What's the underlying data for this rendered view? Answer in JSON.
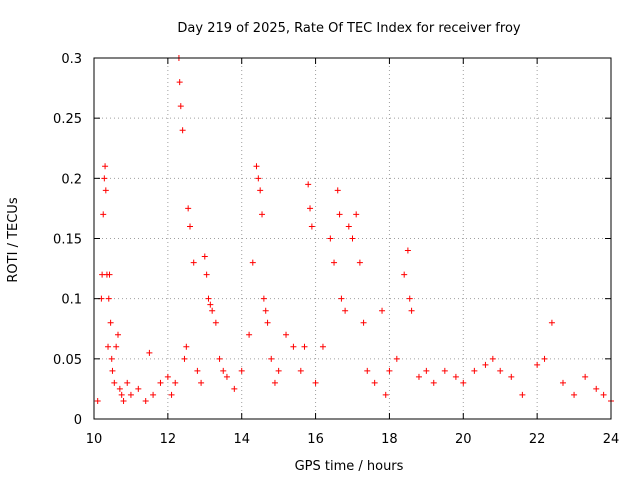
{
  "chart_data": {
    "type": "scatter",
    "title": "Day 219 of 2025, Rate Of TEC Index for receiver froy",
    "xlabel": "GPS time / hours",
    "ylabel": "ROTI / TECUs",
    "xlim": [
      10,
      24
    ],
    "ylim": [
      0,
      0.3
    ],
    "x_ticks": [
      10,
      12,
      14,
      16,
      18,
      20,
      22,
      24
    ],
    "x_tick_labels": [
      "10",
      "12",
      "14",
      "16",
      "18",
      "20",
      "22",
      "24"
    ],
    "y_ticks": [
      0,
      0.05,
      0.1,
      0.15,
      0.2,
      0.25,
      0.3
    ],
    "y_tick_labels": [
      "0",
      "0.05",
      "0.1",
      "0.15",
      "0.2",
      "0.25",
      "0.3"
    ],
    "grid": true,
    "marker": "+",
    "color": "#ff0000",
    "series": [
      {
        "name": "ROTI",
        "x": [
          10.1,
          10.2,
          10.22,
          10.25,
          10.28,
          10.3,
          10.32,
          10.35,
          10.38,
          10.4,
          10.42,
          10.45,
          10.48,
          10.5,
          10.55,
          10.6,
          10.65,
          10.7,
          10.75,
          10.8,
          10.9,
          11.0,
          11.2,
          11.4,
          11.5,
          11.6,
          11.8,
          12.0,
          12.1,
          12.2,
          12.3,
          12.32,
          12.35,
          12.4,
          12.45,
          12.5,
          12.55,
          12.6,
          12.7,
          12.8,
          12.9,
          13.0,
          13.05,
          13.1,
          13.15,
          13.2,
          13.3,
          13.4,
          13.5,
          13.6,
          13.8,
          14.0,
          14.2,
          14.3,
          14.4,
          14.45,
          14.5,
          14.55,
          14.6,
          14.65,
          14.7,
          14.8,
          14.9,
          15.0,
          15.2,
          15.4,
          15.6,
          15.7,
          15.8,
          15.85,
          15.9,
          16.0,
          16.2,
          16.4,
          16.5,
          16.6,
          16.65,
          16.7,
          16.8,
          16.9,
          17.0,
          17.1,
          17.2,
          17.3,
          17.4,
          17.6,
          17.8,
          17.9,
          18.0,
          18.2,
          18.4,
          18.5,
          18.55,
          18.6,
          18.8,
          19.0,
          19.2,
          19.5,
          19.8,
          20.0,
          20.3,
          20.6,
          20.8,
          21.0,
          21.3,
          21.6,
          22.0,
          22.2,
          22.4,
          22.7,
          23.0,
          23.3,
          23.6,
          23.8,
          24.0
        ],
        "y": [
          0.015,
          0.1,
          0.12,
          0.17,
          0.2,
          0.21,
          0.19,
          0.12,
          0.06,
          0.1,
          0.12,
          0.08,
          0.05,
          0.04,
          0.03,
          0.06,
          0.07,
          0.025,
          0.02,
          0.015,
          0.03,
          0.02,
          0.025,
          0.015,
          0.055,
          0.02,
          0.03,
          0.035,
          0.02,
          0.03,
          0.3,
          0.28,
          0.26,
          0.24,
          0.05,
          0.06,
          0.175,
          0.16,
          0.13,
          0.04,
          0.03,
          0.135,
          0.12,
          0.1,
          0.095,
          0.09,
          0.08,
          0.05,
          0.04,
          0.035,
          0.025,
          0.04,
          0.07,
          0.13,
          0.21,
          0.2,
          0.19,
          0.17,
          0.1,
          0.09,
          0.08,
          0.05,
          0.03,
          0.04,
          0.07,
          0.06,
          0.04,
          0.06,
          0.195,
          0.175,
          0.16,
          0.03,
          0.06,
          0.15,
          0.13,
          0.19,
          0.17,
          0.1,
          0.09,
          0.16,
          0.15,
          0.17,
          0.13,
          0.08,
          0.04,
          0.03,
          0.09,
          0.02,
          0.04,
          0.05,
          0.12,
          0.14,
          0.1,
          0.09,
          0.035,
          0.04,
          0.03,
          0.04,
          0.035,
          0.03,
          0.04,
          0.045,
          0.05,
          0.04,
          0.035,
          0.02,
          0.045,
          0.05,
          0.08,
          0.03,
          0.02,
          0.035,
          0.025,
          0.02,
          0.015
        ]
      }
    ]
  }
}
